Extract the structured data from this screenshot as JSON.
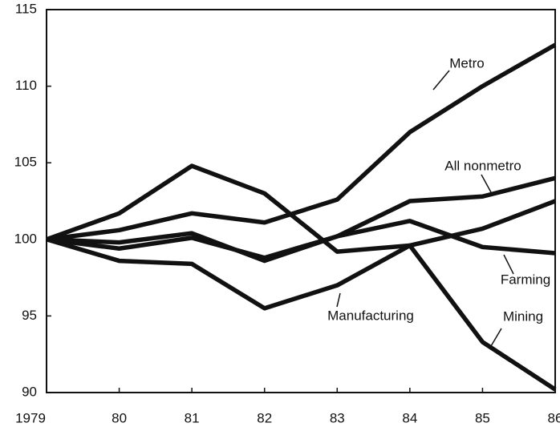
{
  "chart_data": {
    "type": "line",
    "x": [
      1979,
      1980,
      1981,
      1982,
      1983,
      1984,
      1985,
      1986
    ],
    "xlim": [
      1979,
      1986
    ],
    "xticks": [
      1979,
      {
        "value": 1980,
        "label": "80"
      },
      {
        "value": 1981,
        "label": "81"
      },
      {
        "value": 1982,
        "label": "82"
      },
      {
        "value": 1983,
        "label": "83"
      },
      {
        "value": 1984,
        "label": "84"
      },
      {
        "value": 1985,
        "label": "85"
      },
      {
        "value": 1986,
        "label": "86"
      }
    ],
    "ylim": [
      90,
      115
    ],
    "yticks": [
      90,
      95,
      100,
      105,
      110,
      115
    ],
    "series": [
      {
        "name": "Metro",
        "color": "#111111",
        "values": [
          100,
          100.6,
          101.7,
          101.1,
          102.6,
          107,
          110,
          112.7
        ]
      },
      {
        "name": "All nonmetro",
        "color": "#111111",
        "values": [
          100,
          99.8,
          100.4,
          98.6,
          100.2,
          102.5,
          102.8,
          104
        ]
      },
      {
        "name": "Farming",
        "color": "#111111",
        "values": [
          100,
          99.4,
          100.1,
          98.8,
          100.2,
          101.2,
          99.5,
          99.1
        ]
      },
      {
        "name": "Manufacturing",
        "color": "#111111",
        "values": [
          100,
          98.6,
          98.4,
          95.5,
          97,
          99.6,
          100.7,
          102.5
        ]
      },
      {
        "name": "Mining",
        "color": "#111111",
        "values": [
          100,
          101.7,
          104.8,
          103,
          99.2,
          99.6,
          93.3,
          90.2
        ]
      }
    ]
  }
}
